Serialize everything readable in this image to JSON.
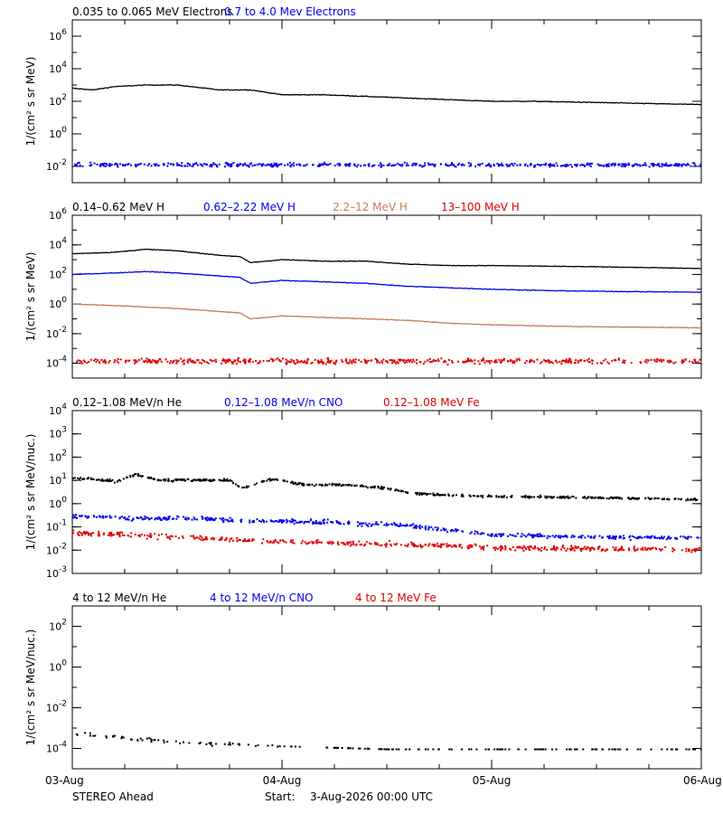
{
  "colors": {
    "black": "#000000",
    "blue": "#0000ee",
    "tan": "#c87a5a",
    "red": "#e00000"
  },
  "x_axis": {
    "ticks": [
      "03-Aug",
      "04-Aug",
      "05-Aug",
      "06-Aug"
    ],
    "range": [
      0,
      3
    ],
    "range_note": "days from start"
  },
  "footer": {
    "spacecraft": "STEREO Ahead",
    "start_label": "Start:",
    "start_value": "3-Aug-2026 00:00 UTC"
  },
  "chart_data": [
    {
      "type": "scatter",
      "ylabel": "1/(cm² s sr MeV)",
      "yscale": "log",
      "ylim_exp": [
        -3,
        7
      ],
      "tick_exps": [
        -2,
        0,
        2,
        4,
        6
      ],
      "legend": [
        {
          "name": "0.035 to 0.065 MeV Electrons",
          "color": "black"
        },
        {
          "name": "0.7 to 4.0 Mev Electrons",
          "color": "blue"
        }
      ],
      "series": [
        {
          "name": "0.035 to 0.065 MeV Electrons",
          "color": "black",
          "style": "line",
          "x": [
            0,
            0.1,
            0.2,
            0.35,
            0.5,
            0.7,
            0.85,
            1.0,
            1.2,
            1.4,
            1.6,
            1.8,
            2.0,
            2.2,
            2.4,
            2.6,
            2.8,
            3.0
          ],
          "y_exp": [
            2.8,
            2.7,
            2.9,
            3.0,
            3.0,
            2.7,
            2.7,
            2.4,
            2.4,
            2.3,
            2.2,
            2.1,
            2.0,
            2.0,
            1.95,
            1.9,
            1.85,
            1.8
          ],
          "noise": 0.04
        },
        {
          "name": "0.7 to 4.0 Mev Electrons",
          "color": "blue",
          "style": "scatter",
          "x": [
            0,
            3.0
          ],
          "y_exp": [
            -1.85,
            -1.85
          ],
          "noise": 0.2
        }
      ]
    },
    {
      "type": "scatter",
      "ylabel": "1/(cm² s sr MeV)",
      "yscale": "log",
      "ylim_exp": [
        -5,
        6
      ],
      "tick_exps": [
        -4,
        -2,
        0,
        2,
        4,
        6
      ],
      "legend": [
        {
          "name": "0.14–0.62 MeV H",
          "color": "black"
        },
        {
          "name": "0.62–2.22 MeV H",
          "color": "blue"
        },
        {
          "name": "2.2–12 MeV H",
          "color": "tan"
        },
        {
          "name": "13–100 MeV H",
          "color": "red"
        }
      ],
      "series": [
        {
          "name": "0.14–0.62 MeV H",
          "color": "black",
          "style": "line",
          "x": [
            0,
            0.2,
            0.35,
            0.5,
            0.7,
            0.8,
            0.85,
            1.0,
            1.2,
            1.4,
            1.6,
            1.8,
            2.0,
            2.3,
            2.6,
            3.0
          ],
          "y_exp": [
            3.4,
            3.5,
            3.7,
            3.6,
            3.3,
            3.2,
            2.8,
            3.0,
            2.9,
            2.9,
            2.7,
            2.6,
            2.6,
            2.55,
            2.5,
            2.4
          ],
          "noise": 0.04
        },
        {
          "name": "0.62–2.22 MeV H",
          "color": "blue",
          "style": "line",
          "x": [
            0,
            0.2,
            0.35,
            0.5,
            0.7,
            0.8,
            0.85,
            1.0,
            1.2,
            1.4,
            1.6,
            1.8,
            2.0,
            2.3,
            2.6,
            3.0
          ],
          "y_exp": [
            2.0,
            2.1,
            2.2,
            2.1,
            1.9,
            1.8,
            1.4,
            1.6,
            1.5,
            1.4,
            1.2,
            1.1,
            1.0,
            0.9,
            0.85,
            0.8
          ],
          "noise": 0.04
        },
        {
          "name": "2.2–12 MeV H",
          "color": "tan",
          "style": "line",
          "x": [
            0,
            0.2,
            0.35,
            0.5,
            0.7,
            0.8,
            0.85,
            1.0,
            1.2,
            1.4,
            1.6,
            1.8,
            2.0,
            2.3,
            2.6,
            3.0
          ],
          "y_exp": [
            0.0,
            -0.1,
            -0.2,
            -0.3,
            -0.5,
            -0.6,
            -1.0,
            -0.8,
            -0.9,
            -1.0,
            -1.1,
            -1.3,
            -1.4,
            -1.5,
            -1.55,
            -1.6
          ],
          "noise": 0.04
        },
        {
          "name": "13–100 MeV H",
          "color": "red",
          "style": "scatter",
          "x": [
            0,
            3.0
          ],
          "y_exp": [
            -3.8,
            -3.8
          ],
          "noise": 0.3
        }
      ]
    },
    {
      "type": "scatter",
      "ylabel": "1/(cm² s sr MeV/nuc.)",
      "yscale": "log",
      "ylim_exp": [
        -3,
        4
      ],
      "tick_exps": [
        -3,
        -2,
        -1,
        0,
        1,
        2,
        3,
        4
      ],
      "legend": [
        {
          "name": "0.12–1.08 MeV/n He",
          "color": "black"
        },
        {
          "name": "0.12–1.08 MeV/n CNO",
          "color": "blue"
        },
        {
          "name": "0.12–1.08 MeV Fe",
          "color": "red"
        }
      ],
      "series": [
        {
          "name": "0.12–1.08 MeV/n He",
          "color": "black",
          "style": "scatter",
          "x": [
            0,
            0.2,
            0.3,
            0.4,
            0.6,
            0.75,
            0.8,
            0.95,
            1.1,
            1.3,
            1.5,
            1.6,
            1.8,
            2.0,
            2.4,
            2.8,
            3.0
          ],
          "y_exp": [
            1.15,
            1.0,
            1.3,
            1.05,
            1.05,
            1.05,
            0.7,
            1.1,
            0.85,
            0.85,
            0.7,
            0.5,
            0.4,
            0.35,
            0.3,
            0.25,
            0.2
          ],
          "noise": 0.08
        },
        {
          "name": "0.12–1.08 MeV/n CNO",
          "color": "blue",
          "style": "scatter",
          "x": [
            0,
            0.3,
            0.6,
            0.8,
            1.0,
            1.3,
            1.6,
            1.8,
            2.0,
            2.5,
            3.0
          ],
          "y_exp": [
            -0.5,
            -0.6,
            -0.6,
            -0.7,
            -0.7,
            -0.8,
            -0.9,
            -1.1,
            -1.3,
            -1.4,
            -1.45
          ],
          "noise": 0.15
        },
        {
          "name": "0.12–1.08 MeV Fe",
          "color": "red",
          "style": "scatter",
          "x": [
            0,
            0.5,
            1.0,
            1.5,
            2.0,
            3.0
          ],
          "y_exp": [
            -1.2,
            -1.4,
            -1.6,
            -1.7,
            -1.85,
            -1.95
          ],
          "noise": 0.18
        }
      ]
    },
    {
      "type": "scatter",
      "ylabel": "1/(cm² s sr MeV/nuc.)",
      "yscale": "log",
      "ylim_exp": [
        -5,
        3
      ],
      "tick_exps": [
        -4,
        -2,
        0,
        2
      ],
      "legend": [
        {
          "name": "4 to 12 MeV/n He",
          "color": "black"
        },
        {
          "name": "4 to 12 MeV/n CNO",
          "color": "blue"
        },
        {
          "name": "4 to 12 MeV Fe",
          "color": "red"
        }
      ],
      "series": [
        {
          "name": "4 to 12 MeV/n He",
          "color": "black",
          "style": "sparse",
          "x": [
            0,
            0.3,
            0.6,
            1.0,
            1.5,
            2.0,
            3.0
          ],
          "y_exp": [
            -3.2,
            -3.5,
            -3.7,
            -3.85,
            -4.0,
            -4.0,
            -4.0
          ],
          "noise": 0.15
        }
      ]
    }
  ]
}
